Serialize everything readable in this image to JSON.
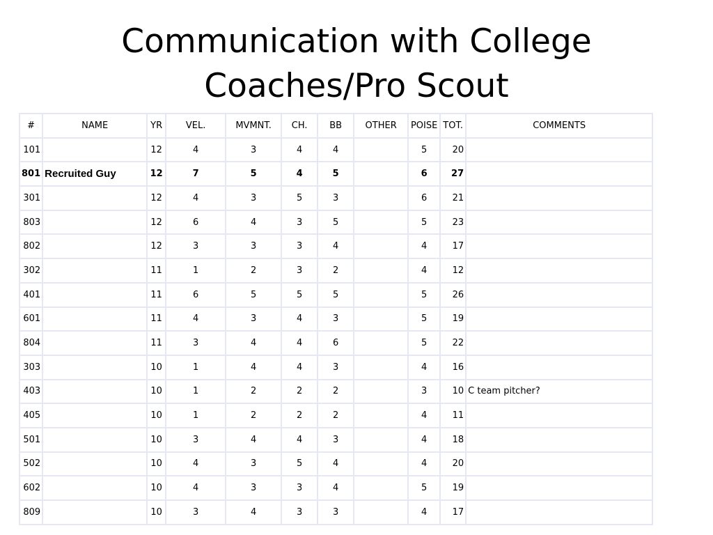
{
  "title": {
    "line1": "Communication with College",
    "line2": "Coaches/Pro Scout"
  },
  "table": {
    "headers": [
      "#",
      "NAME",
      "YR",
      "VEL.",
      "MVMNT.",
      "CH.",
      "BB",
      "OTHER",
      "POISE",
      "TOT.",
      "COMMENTS"
    ],
    "rows": [
      {
        "num": "101",
        "name": "",
        "yr": "12",
        "vel": "4",
        "mvmnt": "3",
        "ch": "4",
        "bb": "4",
        "other": "",
        "poise": "5",
        "tot": "20",
        "comments": ""
      },
      {
        "num": "801",
        "name": "Recruited Guy",
        "yr": "12",
        "vel": "7",
        "mvmnt": "5",
        "ch": "4",
        "bb": "5",
        "other": "",
        "poise": "6",
        "tot": "27",
        "comments": "",
        "bold": true
      },
      {
        "num": "301",
        "name": "",
        "yr": "12",
        "vel": "4",
        "mvmnt": "3",
        "ch": "5",
        "bb": "3",
        "other": "",
        "poise": "6",
        "tot": "21",
        "comments": ""
      },
      {
        "num": "803",
        "name": "",
        "yr": "12",
        "vel": "6",
        "mvmnt": "4",
        "ch": "3",
        "bb": "5",
        "other": "",
        "poise": "5",
        "tot": "23",
        "comments": ""
      },
      {
        "num": "802",
        "name": "",
        "yr": "12",
        "vel": "3",
        "mvmnt": "3",
        "ch": "3",
        "bb": "4",
        "other": "",
        "poise": "4",
        "tot": "17",
        "comments": ""
      },
      {
        "num": "302",
        "name": "",
        "yr": "11",
        "vel": "1",
        "mvmnt": "2",
        "ch": "3",
        "bb": "2",
        "other": "",
        "poise": "4",
        "tot": "12",
        "comments": ""
      },
      {
        "num": "401",
        "name": "",
        "yr": "11",
        "vel": "6",
        "mvmnt": "5",
        "ch": "5",
        "bb": "5",
        "other": "",
        "poise": "5",
        "tot": "26",
        "comments": ""
      },
      {
        "num": "601",
        "name": "",
        "yr": "11",
        "vel": "4",
        "mvmnt": "3",
        "ch": "4",
        "bb": "3",
        "other": "",
        "poise": "5",
        "tot": "19",
        "comments": ""
      },
      {
        "num": "804",
        "name": "",
        "yr": "11",
        "vel": "3",
        "mvmnt": "4",
        "ch": "4",
        "bb": "6",
        "other": "",
        "poise": "5",
        "tot": "22",
        "comments": ""
      },
      {
        "num": "303",
        "name": "",
        "yr": "10",
        "vel": "1",
        "mvmnt": "4",
        "ch": "4",
        "bb": "3",
        "other": "",
        "poise": "4",
        "tot": "16",
        "comments": ""
      },
      {
        "num": "403",
        "name": "",
        "yr": "10",
        "vel": "1",
        "mvmnt": "2",
        "ch": "2",
        "bb": "2",
        "other": "",
        "poise": "3",
        "tot": "10",
        "comments": "C team pitcher?"
      },
      {
        "num": "405",
        "name": "",
        "yr": "10",
        "vel": "1",
        "mvmnt": "2",
        "ch": "2",
        "bb": "2",
        "other": "",
        "poise": "4",
        "tot": "11",
        "comments": ""
      },
      {
        "num": "501",
        "name": "",
        "yr": "10",
        "vel": "3",
        "mvmnt": "4",
        "ch": "4",
        "bb": "3",
        "other": "",
        "poise": "4",
        "tot": "18",
        "comments": ""
      },
      {
        "num": "502",
        "name": "",
        "yr": "10",
        "vel": "4",
        "mvmnt": "3",
        "ch": "5",
        "bb": "4",
        "other": "",
        "poise": "4",
        "tot": "20",
        "comments": ""
      },
      {
        "num": "602",
        "name": "",
        "yr": "10",
        "vel": "4",
        "mvmnt": "3",
        "ch": "3",
        "bb": "4",
        "other": "",
        "poise": "5",
        "tot": "19",
        "comments": ""
      },
      {
        "num": "809",
        "name": "",
        "yr": "10",
        "vel": "3",
        "mvmnt": "4",
        "ch": "3",
        "bb": "3",
        "other": "",
        "poise": "4",
        "tot": "17",
        "comments": ""
      }
    ]
  }
}
